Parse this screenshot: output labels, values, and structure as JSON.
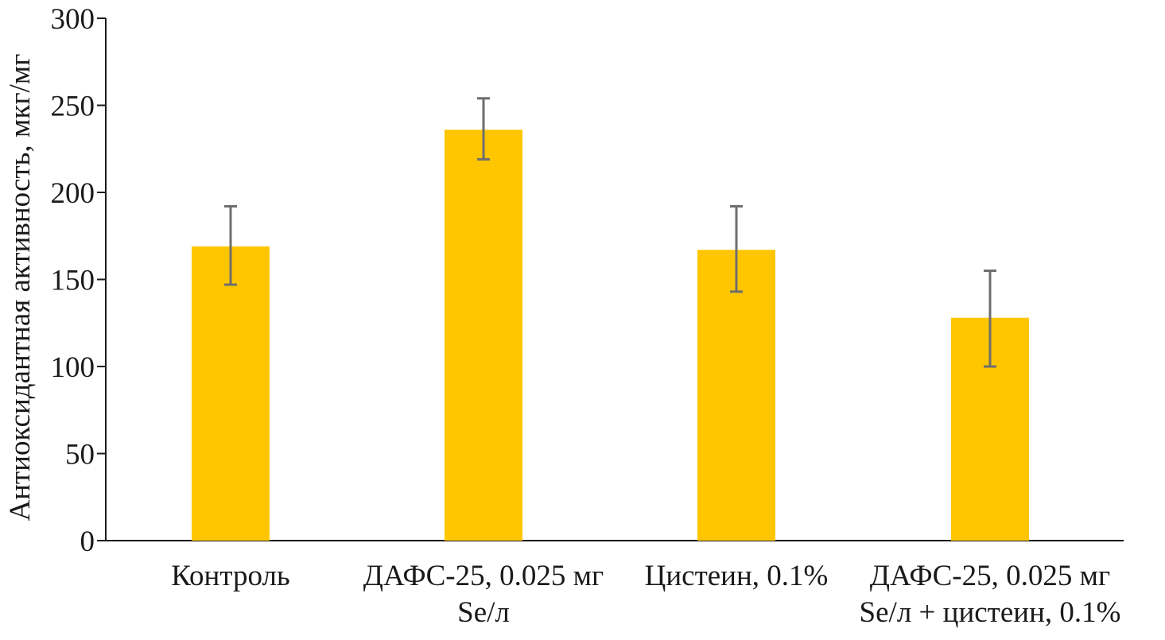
{
  "chart_data": {
    "type": "bar",
    "title": "",
    "xlabel": "",
    "ylabel": "Антиоксидантная активность, мкг/мг",
    "categories": [
      [
        "Контроль"
      ],
      [
        "ДАФС-25, 0.025 мг",
        "Se/л"
      ],
      [
        "Цистеин, 0.1%"
      ],
      [
        "ДАФС-25, 0.025 мг",
        "Se/л + цистеин, 0.1%"
      ]
    ],
    "values": [
      169,
      236,
      167,
      128
    ],
    "error_low": [
      147,
      219,
      143,
      100
    ],
    "error_high": [
      192,
      254,
      192,
      155
    ],
    "ylim": [
      0,
      300
    ],
    "yticks": [
      0,
      50,
      100,
      150,
      200,
      250,
      300
    ],
    "grid": false,
    "colors": {
      "bar": "#FFC600",
      "error_bar": "#6e6e6e",
      "axis": "#1a1a1a"
    }
  }
}
